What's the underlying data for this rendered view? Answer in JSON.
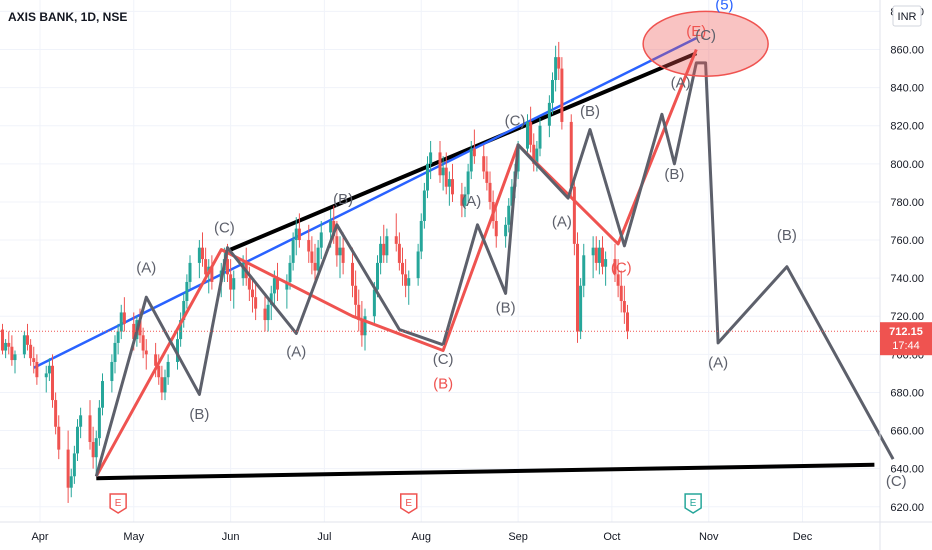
{
  "header": {
    "symbol_title": "AXIS BANK, 1D, NSE",
    "currency_button": "INR"
  },
  "chart_data": {
    "type": "candlestick",
    "title": "AXIS BANK, 1D, NSE",
    "x_ticks": [
      "Apr",
      "May",
      "Jun",
      "Jul",
      "Aug",
      "Sep",
      "Oct",
      "Nov",
      "Dec"
    ],
    "y_ticks": [
      620,
      640,
      660,
      680,
      700,
      720,
      740,
      760,
      780,
      800,
      820,
      840,
      860,
      880
    ],
    "y_tick_labels": [
      "620.00",
      "640.00",
      "660.00",
      "680.00",
      "700.00",
      "720.00",
      "740.00",
      "760.00",
      "780.00",
      "800.00",
      "820.00",
      "840.00",
      "860.00",
      "880.00"
    ],
    "ylim": [
      612,
      886
    ],
    "last_price": "712.15",
    "countdown": "17:44",
    "colors": {
      "up": "#26a69a",
      "down": "#ef5350",
      "price_line": "#ef5350"
    },
    "trendlines": [
      {
        "color": "#000000",
        "points": [
          [
            "Jun-01",
            755
          ],
          [
            "Oct-28",
            858
          ]
        ]
      },
      {
        "color": "#000000",
        "points": [
          [
            "Apr-19",
            635
          ],
          [
            "Dec-24",
            642
          ]
        ]
      },
      {
        "color": "#2962ff",
        "points": [
          [
            "Mar-30",
            693
          ],
          [
            "Oct-28",
            866
          ]
        ]
      }
    ],
    "wave_paths": [
      {
        "color": "#ef5350",
        "points": [
          [
            "Apr-19",
            636
          ],
          [
            "May-29",
            755
          ],
          [
            "Jul-10",
            720
          ],
          [
            "Aug-08",
            702
          ],
          [
            "Sep-01",
            810
          ],
          [
            "Oct-03",
            758
          ],
          [
            "Oct-28",
            860
          ]
        ]
      },
      {
        "color": "#5d606b",
        "points": [
          [
            "Apr-19",
            636
          ],
          [
            "May-05",
            730
          ],
          [
            "May-22",
            679
          ],
          [
            "May-31",
            756
          ],
          [
            "Jun-22",
            711
          ],
          [
            "Jul-05",
            768
          ],
          [
            "Jul-25",
            713
          ],
          [
            "Aug-08",
            705
          ]
        ]
      },
      {
        "color": "#5d606b",
        "points": [
          [
            "Aug-08",
            705
          ],
          [
            "Aug-19",
            768
          ],
          [
            "Aug-28",
            732
          ],
          [
            "Sep-01",
            810
          ],
          [
            "Sep-17",
            782
          ],
          [
            "Sep-24",
            818
          ],
          [
            "Oct-05",
            757
          ],
          [
            "Oct-17",
            826
          ],
          [
            "Oct-21",
            800
          ],
          [
            "Oct-28",
            853
          ],
          [
            "Oct-31",
            853
          ],
          [
            "Nov-04",
            706
          ],
          [
            "Nov-26",
            746
          ],
          [
            "Dec-30",
            645
          ]
        ]
      }
    ],
    "wave_labels": [
      {
        "text": "(A)",
        "x": "May-05",
        "y": 743,
        "color": "#5d606b"
      },
      {
        "text": "(B)",
        "x": "May-22",
        "y": 666,
        "color": "#5d606b"
      },
      {
        "text": "(C)",
        "x": "May-30",
        "y": 764,
        "color": "#5d606b"
      },
      {
        "text": "(A)",
        "x": "Jun-22",
        "y": 699,
        "color": "#5d606b"
      },
      {
        "text": "(B)",
        "x": "Jul-07",
        "y": 779,
        "color": "#5d606b"
      },
      {
        "text": "(C)",
        "x": "Aug-08",
        "y": 695,
        "color": "#5d606b"
      },
      {
        "text": "(B)",
        "x": "Aug-08",
        "y": 682,
        "color": "#ef5350"
      },
      {
        "text": "(A)",
        "x": "Aug-17",
        "y": 778,
        "color": "#5d606b"
      },
      {
        "text": "(B)",
        "x": "Aug-28",
        "y": 722,
        "color": "#5d606b"
      },
      {
        "text": "(C)",
        "x": "Aug-31",
        "y": 820,
        "color": "#5d606b"
      },
      {
        "text": "(A)",
        "x": "Sep-15",
        "y": 767,
        "color": "#5d606b"
      },
      {
        "text": "(B)",
        "x": "Sep-24",
        "y": 825,
        "color": "#5d606b"
      },
      {
        "text": "(C)",
        "x": "Oct-04",
        "y": 743,
        "color": "#ef5350"
      },
      {
        "text": "(A)",
        "x": "Oct-23",
        "y": 840,
        "color": "#5d606b"
      },
      {
        "text": "(B)",
        "x": "Oct-21",
        "y": 792,
        "color": "#5d606b"
      },
      {
        "text": "(E)",
        "x": "Oct-28",
        "y": 867,
        "color": "#ef5350"
      },
      {
        "text": "(C)",
        "x": "Oct-31",
        "y": 865,
        "color": "#5d606b"
      },
      {
        "text": "(5)",
        "x": "Nov-06",
        "y": 881,
        "color": "#2962ff"
      },
      {
        "text": "(A)",
        "x": "Nov-04",
        "y": 693,
        "color": "#5d606b"
      },
      {
        "text": "(B)",
        "x": "Nov-26",
        "y": 760,
        "color": "#5d606b"
      },
      {
        "text": "(C)",
        "x": "Dec-31",
        "y": 631,
        "color": "#5d606b"
      }
    ],
    "highlight_ellipse": {
      "color": "#ef5350",
      "center": [
        "Oct-31",
        863
      ],
      "rx_days": 10,
      "ry_price": 17
    },
    "event_markers": [
      {
        "x": "Apr-26",
        "text": "E",
        "kind": "earnings",
        "color": "#ef5350"
      },
      {
        "x": "Jul-28",
        "text": "E",
        "kind": "earnings",
        "color": "#ef5350"
      },
      {
        "x": "Oct-27",
        "text": "E",
        "kind": "earnings",
        "color": "#26a69a"
      }
    ],
    "candles": [
      [
        715,
        720,
        708,
        712
      ],
      [
        712,
        718,
        705,
        716
      ],
      [
        716,
        722,
        710,
        713
      ],
      [
        713,
        716,
        700,
        702
      ],
      [
        702,
        708,
        698,
        706
      ],
      [
        706,
        712,
        700,
        704
      ],
      [
        704,
        710,
        694,
        697
      ],
      [
        697,
        702,
        690,
        700
      ],
      [
        700,
        712,
        698,
        710
      ],
      [
        710,
        716,
        702,
        705
      ],
      [
        705,
        708,
        694,
        698
      ],
      [
        698,
        704,
        690,
        696
      ],
      [
        696,
        700,
        684,
        688
      ],
      [
        688,
        694,
        680,
        690
      ],
      [
        690,
        698,
        686,
        694
      ],
      [
        694,
        700,
        672,
        676
      ],
      [
        676,
        680,
        658,
        662
      ],
      [
        662,
        668,
        645,
        650
      ],
      [
        650,
        660,
        622,
        630
      ],
      [
        630,
        640,
        625,
        636
      ],
      [
        636,
        652,
        632,
        648
      ],
      [
        648,
        666,
        644,
        662
      ],
      [
        662,
        672,
        656,
        668
      ],
      [
        668,
        676,
        650,
        654
      ],
      [
        654,
        662,
        640,
        646
      ],
      [
        646,
        660,
        636,
        656
      ],
      [
        656,
        676,
        652,
        672
      ],
      [
        672,
        690,
        668,
        686
      ],
      [
        686,
        700,
        680,
        696
      ],
      [
        696,
        710,
        690,
        706
      ],
      [
        706,
        716,
        700,
        712
      ],
      [
        712,
        726,
        708,
        722
      ],
      [
        722,
        730,
        712,
        716
      ],
      [
        716,
        722,
        702,
        708
      ],
      [
        708,
        720,
        704,
        718
      ],
      [
        718,
        724,
        706,
        710
      ],
      [
        710,
        714,
        698,
        702
      ],
      [
        702,
        708,
        692,
        700
      ],
      [
        700,
        706,
        688,
        694
      ],
      [
        694,
        700,
        684,
        688
      ],
      [
        688,
        694,
        676,
        680
      ],
      [
        680,
        692,
        676,
        688
      ],
      [
        688,
        700,
        684,
        696
      ],
      [
        696,
        712,
        692,
        708
      ],
      [
        708,
        722,
        704,
        718
      ],
      [
        718,
        732,
        714,
        728
      ],
      [
        728,
        742,
        724,
        738
      ],
      [
        738,
        752,
        734,
        748
      ],
      [
        748,
        760,
        740,
        756
      ],
      [
        756,
        764,
        746,
        750
      ],
      [
        750,
        756,
        738,
        742
      ],
      [
        742,
        750,
        732,
        746
      ],
      [
        746,
        752,
        734,
        738
      ],
      [
        738,
        748,
        730,
        744
      ],
      [
        744,
        756,
        738,
        750
      ],
      [
        750,
        758,
        738,
        742
      ],
      [
        742,
        750,
        728,
        734
      ],
      [
        734,
        744,
        724,
        740
      ],
      [
        740,
        752,
        736,
        748
      ],
      [
        748,
        756,
        736,
        740
      ],
      [
        740,
        746,
        728,
        734
      ],
      [
        734,
        740,
        722,
        730
      ],
      [
        730,
        738,
        718,
        724
      ],
      [
        724,
        732,
        712,
        718
      ],
      [
        718,
        730,
        712,
        726
      ],
      [
        726,
        736,
        718,
        732
      ],
      [
        732,
        744,
        726,
        740
      ],
      [
        740,
        748,
        728,
        734
      ],
      [
        734,
        742,
        724,
        738
      ],
      [
        738,
        752,
        734,
        748
      ],
      [
        748,
        764,
        744,
        760
      ],
      [
        760,
        772,
        752,
        766
      ],
      [
        766,
        774,
        756,
        760
      ],
      [
        760,
        768,
        748,
        754
      ],
      [
        754,
        762,
        742,
        748
      ],
      [
        748,
        758,
        738,
        744
      ],
      [
        744,
        760,
        740,
        756
      ],
      [
        756,
        770,
        750,
        764
      ],
      [
        764,
        776,
        756,
        770
      ],
      [
        770,
        778,
        758,
        762
      ],
      [
        762,
        770,
        746,
        752
      ],
      [
        752,
        762,
        740,
        756
      ],
      [
        756,
        764,
        742,
        748
      ],
      [
        748,
        756,
        730,
        736
      ],
      [
        736,
        744,
        720,
        726
      ],
      [
        726,
        734,
        712,
        718
      ],
      [
        718,
        728,
        704,
        710
      ],
      [
        710,
        724,
        702,
        720
      ],
      [
        720,
        738,
        716,
        734
      ],
      [
        734,
        752,
        730,
        748
      ],
      [
        748,
        762,
        742,
        758
      ],
      [
        758,
        768,
        748,
        752
      ],
      [
        752,
        766,
        748,
        762
      ],
      [
        762,
        774,
        754,
        758
      ],
      [
        758,
        764,
        744,
        748
      ],
      [
        748,
        756,
        736,
        742
      ],
      [
        742,
        750,
        730,
        736
      ],
      [
        736,
        744,
        726,
        740
      ],
      [
        740,
        758,
        736,
        754
      ],
      [
        754,
        774,
        750,
        770
      ],
      [
        770,
        790,
        766,
        786
      ],
      [
        786,
        804,
        782,
        800
      ],
      [
        800,
        812,
        792,
        806
      ],
      [
        806,
        812,
        790,
        794
      ],
      [
        794,
        804,
        786,
        798
      ],
      [
        798,
        806,
        784,
        788
      ],
      [
        788,
        796,
        778,
        792
      ],
      [
        792,
        800,
        780,
        784
      ],
      [
        784,
        790,
        772,
        778
      ],
      [
        778,
        788,
        772,
        784
      ],
      [
        784,
        800,
        780,
        796
      ],
      [
        796,
        812,
        792,
        808
      ],
      [
        808,
        818,
        800,
        804
      ],
      [
        804,
        810,
        792,
        796
      ],
      [
        796,
        804,
        786,
        790
      ],
      [
        790,
        796,
        776,
        780
      ],
      [
        780,
        786,
        766,
        770
      ],
      [
        770,
        778,
        756,
        762
      ],
      [
        762,
        772,
        756,
        768
      ],
      [
        768,
        782,
        764,
        778
      ],
      [
        778,
        792,
        774,
        788
      ],
      [
        788,
        800,
        782,
        796
      ],
      [
        796,
        812,
        792,
        808
      ],
      [
        808,
        826,
        804,
        822
      ],
      [
        822,
        830,
        806,
        810
      ],
      [
        810,
        816,
        796,
        800
      ],
      [
        800,
        812,
        796,
        808
      ],
      [
        808,
        824,
        804,
        820
      ],
      [
        820,
        836,
        814,
        832
      ],
      [
        832,
        848,
        826,
        844
      ],
      [
        844,
        862,
        838,
        856
      ],
      [
        856,
        864,
        844,
        850
      ],
      [
        850,
        856,
        818,
        822
      ],
      [
        822,
        826,
        782,
        788
      ],
      [
        788,
        792,
        752,
        758
      ],
      [
        758,
        764,
        706,
        712
      ],
      [
        712,
        740,
        708,
        736
      ],
      [
        736,
        758,
        730,
        752
      ],
      [
        752,
        762,
        740,
        756
      ],
      [
        756,
        762,
        744,
        748
      ],
      [
        748,
        760,
        742,
        756
      ],
      [
        756,
        762,
        742,
        746
      ],
      [
        746,
        754,
        736,
        750
      ],
      [
        750,
        758,
        738,
        742
      ],
      [
        742,
        750,
        730,
        736
      ],
      [
        736,
        744,
        722,
        728
      ],
      [
        728,
        736,
        716,
        722
      ],
      [
        722,
        726,
        708,
        712
      ]
    ]
  }
}
